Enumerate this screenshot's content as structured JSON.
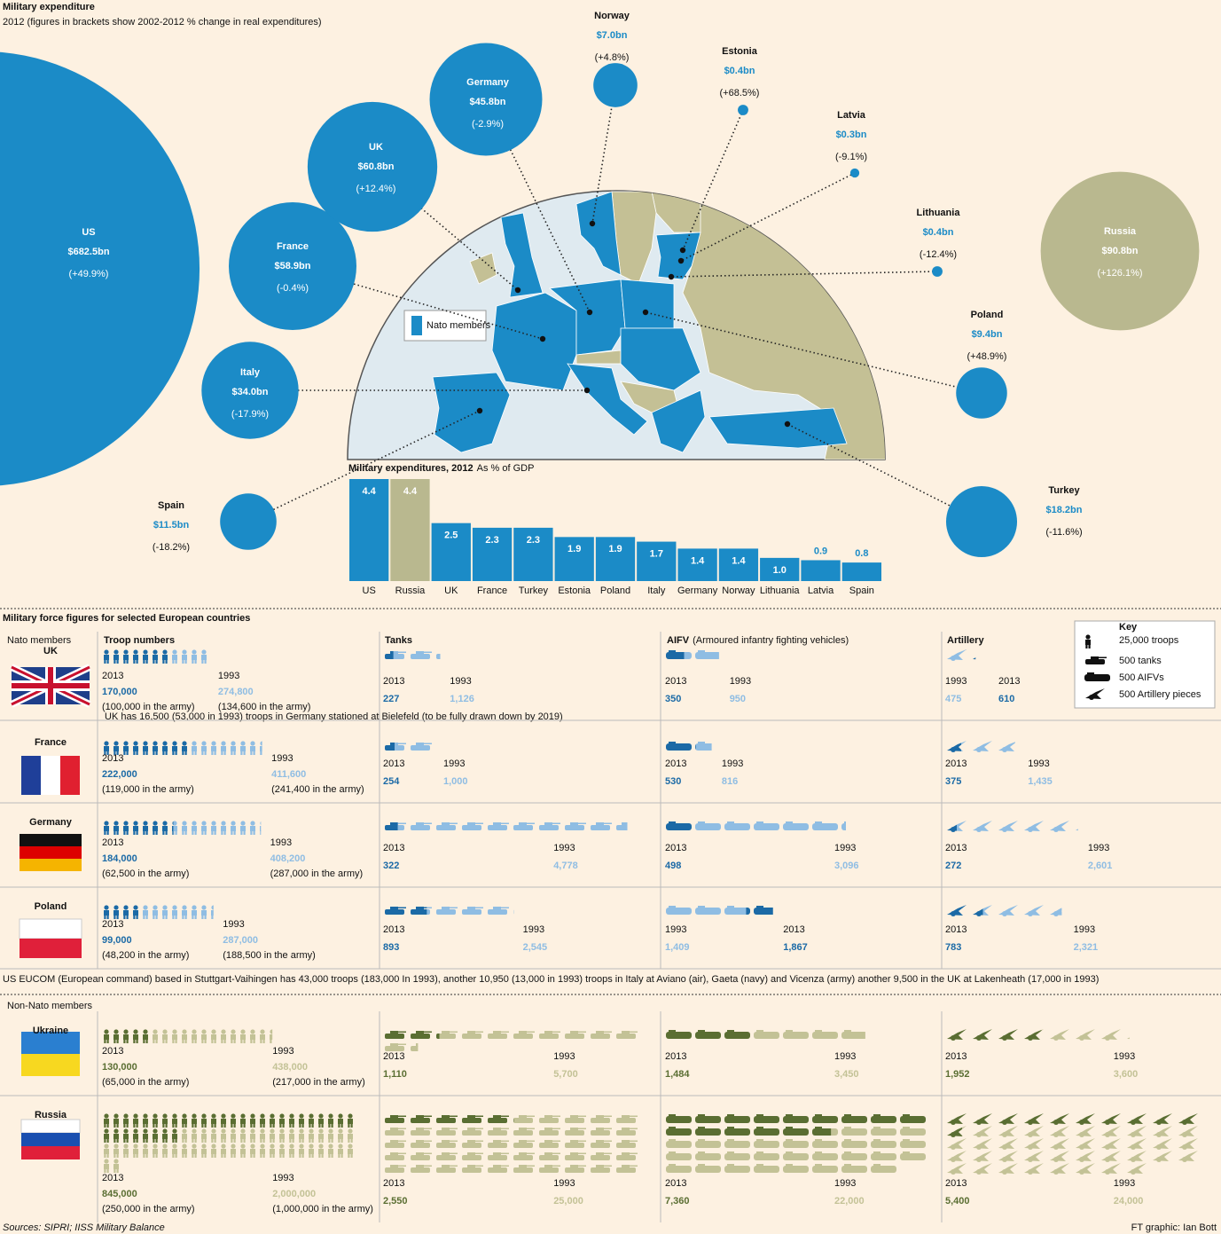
{
  "chart_data": [
    {
      "type": "bubble",
      "title": "Military expenditure",
      "subtitle": "2012 (figures in brackets show 2002-2012 % change in real expenditures)",
      "categories": [
        "US",
        "France",
        "UK",
        "Germany",
        "Norway",
        "Estonia",
        "Latvia",
        "Lithuania",
        "Russia",
        "Poland",
        "Turkey",
        "Spain",
        "Italy"
      ],
      "values": [
        682.5,
        58.9,
        60.8,
        45.8,
        7.0,
        0.4,
        0.3,
        0.4,
        90.8,
        9.4,
        18.2,
        11.5,
        34.0
      ],
      "value_labels": [
        "$682.5bn",
        "$58.9bn",
        "$60.8bn",
        "$45.8bn",
        "$7.0bn",
        "$0.4bn",
        "$0.3bn",
        "$0.4bn",
        "$90.8bn",
        "$9.4bn",
        "$18.2bn",
        "$11.5bn",
        "$34.0bn"
      ],
      "change_labels": [
        "(+49.9%)",
        "(-0.4%)",
        "(+12.4%)",
        "(-2.9%)",
        "(+4.8%)",
        "(+68.5%)",
        "(-9.1%)",
        "(-12.4%)",
        "(+126.1%)",
        "(+48.9%)",
        "(-11.6%)",
        "(-18.2%)",
        "(-17.9%)"
      ],
      "colors": [
        "#1b8bc7",
        "#1b8bc7",
        "#1b8bc7",
        "#1b8bc7",
        "#1b8bc7",
        "#1b8bc7",
        "#1b8bc7",
        "#1b8bc7",
        "#b9b88f",
        "#1b8bc7",
        "#1b8bc7",
        "#1b8bc7",
        "#1b8bc7"
      ],
      "legend_label": "Nato members",
      "legend_color": "#1b8bc7"
    },
    {
      "type": "bar",
      "title": "Military expenditures, 2012",
      "subtitle": "As % of GDP",
      "categories": [
        "US",
        "Russia",
        "UK",
        "France",
        "Turkey",
        "Estonia",
        "Poland",
        "Italy",
        "Germany",
        "Norway",
        "Lithuania",
        "Latvia",
        "Spain"
      ],
      "values": [
        4.4,
        4.4,
        2.5,
        2.3,
        2.3,
        1.9,
        1.9,
        1.7,
        1.4,
        1.4,
        1.0,
        0.9,
        0.8
      ],
      "value_labels": [
        "4.4",
        "4.4",
        "2.5",
        "2.3",
        "2.3",
        "1.9",
        "1.9",
        "1.7",
        "1.4",
        "1.4",
        "1.0",
        "0.9",
        "0.8"
      ],
      "colors": [
        "#1b8bc7",
        "#b9b88f",
        "#1b8bc7",
        "#1b8bc7",
        "#1b8bc7",
        "#1b8bc7",
        "#1b8bc7",
        "#1b8bc7",
        "#1b8bc7",
        "#1b8bc7",
        "#1b8bc7",
        "#1b8bc7",
        "#1b8bc7"
      ],
      "ylim": [
        0,
        4.4
      ]
    }
  ],
  "forces": {
    "title": "Military force figures for selected European countries",
    "years": [
      "2013",
      "1993"
    ],
    "columns": [
      {
        "title": "Troop numbers"
      },
      {
        "title": "Tanks"
      },
      {
        "title": "AIFV",
        "subtitle": "(Armoured infantry fighting vehicles)"
      },
      {
        "title": "Artillery"
      }
    ],
    "key": {
      "title": "Key",
      "items": [
        {
          "value": 25000,
          "label": "25,000 troops"
        },
        {
          "value": 500,
          "label": "500 tanks"
        },
        {
          "value": 500,
          "label": "500 AIFVs"
        },
        {
          "value": 500,
          "label": "500 Artillery pieces"
        }
      ]
    },
    "groups": [
      {
        "label": "Nato members",
        "colors": [
          "#1b6aa6",
          "#8fbde3"
        ],
        "countries": [
          {
            "name": "UK",
            "note": "UK has 16,500 (53,000 in 1993) troops in Germany stationed at Bielefeld (to be fully drawn down by 2019)",
            "measures": [
              [
                {
                  "value": 170000,
                  "label": "170,000",
                  "note": "(100,000 in the army)"
                },
                {
                  "value": 274800,
                  "label": "274,800",
                  "note": "(134,600 in the army)"
                }
              ],
              [
                {
                  "value": 227
                },
                {
                  "value": 1126,
                  "label": "1,126"
                }
              ],
              [
                {
                  "value": 350
                },
                {
                  "value": 950
                }
              ],
              [
                {
                  "value": 610
                },
                {
                  "value": 475
                }
              ]
            ]
          },
          {
            "name": "France",
            "measures": [
              [
                {
                  "value": 222000,
                  "label": "222,000",
                  "note": "(119,000 in the army)"
                },
                {
                  "value": 411600,
                  "label": "411,600",
                  "note": "(241,400 in the army)"
                }
              ],
              [
                {
                  "value": 254
                },
                {
                  "value": 1000,
                  "label": "1,000"
                }
              ],
              [
                {
                  "value": 530
                },
                {
                  "value": 816
                }
              ],
              [
                {
                  "value": 375
                },
                {
                  "value": 1435,
                  "label": "1,435"
                }
              ]
            ]
          },
          {
            "name": "Germany",
            "measures": [
              [
                {
                  "value": 184000,
                  "label": "184,000",
                  "note": "(62,500 in the army)"
                },
                {
                  "value": 408200,
                  "label": "408,200",
                  "note": "(287,000 in the army)"
                }
              ],
              [
                {
                  "value": 322
                },
                {
                  "value": 4778,
                  "label": "4,778"
                }
              ],
              [
                {
                  "value": 498
                },
                {
                  "value": 3096,
                  "label": "3,096"
                }
              ],
              [
                {
                  "value": 272
                },
                {
                  "value": 2601,
                  "label": "2,601"
                }
              ]
            ]
          },
          {
            "name": "Poland",
            "measures": [
              [
                {
                  "value": 99000,
                  "label": "99,000",
                  "note": "(48,200 in the army)"
                },
                {
                  "value": 287000,
                  "label": "287,000",
                  "note": "(188,500 in the army)"
                }
              ],
              [
                {
                  "value": 893
                },
                {
                  "value": 2545,
                  "label": "2,545"
                }
              ],
              [
                {
                  "value": 1867,
                  "label": "1,867"
                },
                {
                  "value": 1409,
                  "label": "1,409"
                }
              ],
              [
                {
                  "value": 783
                },
                {
                  "value": 2321,
                  "label": "2,321"
                }
              ]
            ]
          }
        ]
      },
      {
        "label": "Non-Nato members",
        "colors": [
          "#5a6e32",
          "#c3c296"
        ],
        "countries": [
          {
            "name": "Ukraine",
            "measures": [
              [
                {
                  "value": 130000,
                  "label": "130,000",
                  "note": "(65,000 in the army)"
                },
                {
                  "value": 438000,
                  "label": "438,000",
                  "note": "(217,000 in the army)"
                }
              ],
              [
                {
                  "value": 1110,
                  "label": "1,110"
                },
                {
                  "value": 5700,
                  "label": "5,700"
                }
              ],
              [
                {
                  "value": 1484,
                  "label": "1,484"
                },
                {
                  "value": 3450,
                  "label": "3,450"
                }
              ],
              [
                {
                  "value": 1952,
                  "label": "1,952"
                },
                {
                  "value": 3600,
                  "label": "3,600"
                }
              ]
            ]
          },
          {
            "name": "Russia",
            "measures": [
              [
                {
                  "value": 845000,
                  "label": "845,000",
                  "note": "(250,000 in the army)"
                },
                {
                  "value": 2000000,
                  "label": "2,000,000",
                  "note": "(1,000,000 in the army)"
                }
              ],
              [
                {
                  "value": 2550,
                  "label": "2,550"
                },
                {
                  "value": 25000,
                  "label": "25,000"
                }
              ],
              [
                {
                  "value": 7360,
                  "label": "7,360"
                },
                {
                  "value": 22000,
                  "label": "22,000"
                }
              ],
              [
                {
                  "value": 5400,
                  "label": "5,400"
                },
                {
                  "value": 24000,
                  "label": "24,000"
                }
              ]
            ]
          }
        ]
      }
    ],
    "eucom_note": "US EUCOM (European command) based in Stuttgart-Vaihingen has 43,000 troops (183,000 In 1993), another 10,950  (13,000 in 1993) troops in Italy at Aviano (air), Gaeta (navy) and Vicenza (army) another 9,500 in the UK at Lakenheath (17,000 in 1993)",
    "sources": "Sources: SIPRI; IISS Military Balance",
    "credit": "FT graphic: Ian Bott"
  }
}
